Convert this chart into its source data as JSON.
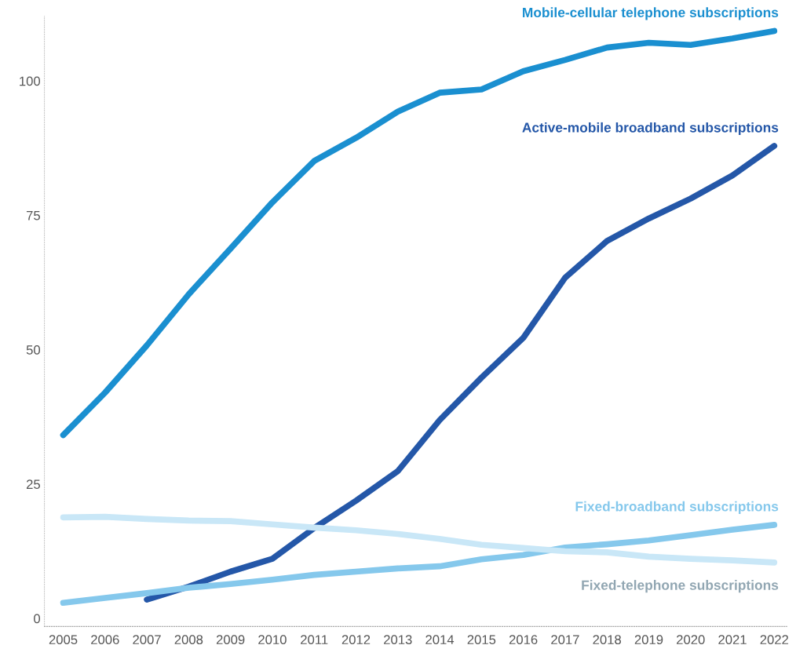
{
  "chart_data": {
    "type": "line",
    "categories": [
      "2005",
      "2006",
      "2007",
      "2008",
      "2009",
      "2010",
      "2011",
      "2012",
      "2013",
      "2014",
      "2015",
      "2016",
      "2017",
      "2018",
      "2019",
      "2020",
      "2021",
      "2022"
    ],
    "series": [
      {
        "name": "Mobile-cellular telephone subscriptions",
        "color": "#1a8fd0",
        "values": [
          34.1,
          42.0,
          50.8,
          60.3,
          68.8,
          77.4,
          85.1,
          89.4,
          94.3,
          97.8,
          98.4,
          101.8,
          103.9,
          106.2,
          107.1,
          106.7,
          107.9,
          109.3
        ]
      },
      {
        "name": "Active-mobile broadband subscriptions",
        "color": "#2457a8",
        "values": [
          null,
          null,
          3.5,
          5.9,
          8.7,
          11.1,
          16.8,
          21.9,
          27.4,
          36.9,
          44.8,
          52.2,
          63.4,
          70.2,
          74.4,
          78.1,
          82.4,
          87.9
        ]
      },
      {
        "name": "Fixed-broadband subscriptions",
        "color": "#85c8ec",
        "values": [
          2.9,
          3.8,
          4.7,
          5.7,
          6.4,
          7.2,
          8.1,
          8.7,
          9.3,
          9.7,
          11.0,
          11.8,
          13.2,
          13.8,
          14.5,
          15.5,
          16.5,
          17.4
        ]
      },
      {
        "name": "Fixed-telephone subscriptions",
        "color": "#c9e7f7",
        "values": [
          18.8,
          18.9,
          18.5,
          18.2,
          18.1,
          17.5,
          16.9,
          16.4,
          15.7,
          14.8,
          13.7,
          13.1,
          12.5,
          12.3,
          11.5,
          11.1,
          10.8,
          10.4
        ]
      }
    ],
    "ylim": [
      -1.5,
      112
    ],
    "yticks": [
      0,
      25,
      50,
      75,
      100
    ],
    "grid": false,
    "legend": false,
    "line_style": "solid",
    "marker": "none"
  }
}
